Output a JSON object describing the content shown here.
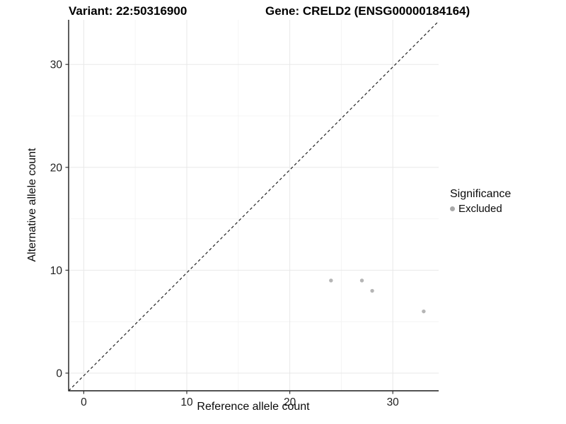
{
  "titles": {
    "variant": "Variant: 22:50316900",
    "gene": "Gene: CRELD2 (ENSG00000184164)"
  },
  "chart_data": {
    "type": "scatter",
    "xlabel": "Reference allele count",
    "ylabel": "Alternative allele count",
    "xlim": [
      -1.5,
      34.5
    ],
    "ylim": [
      -1.7,
      34.3
    ],
    "xticks": [
      0,
      10,
      20,
      30
    ],
    "yticks": [
      0,
      10,
      20,
      30
    ],
    "minor_gridlines": [
      5,
      15,
      25
    ],
    "grid": "on",
    "legend_position": "right",
    "identity_line": {
      "equation": "y = x",
      "style": "dashed",
      "color": "#222222"
    },
    "series": [
      {
        "name": "Excluded",
        "color": "#b5b5b5",
        "points": [
          {
            "x": 24,
            "y": 9
          },
          {
            "x": 27,
            "y": 9
          },
          {
            "x": 28,
            "y": 8
          },
          {
            "x": 33,
            "y": 6
          }
        ]
      }
    ],
    "legend": {
      "title": "Significance",
      "items": [
        {
          "label": "Excluded",
          "color": "#a9a9a9"
        }
      ]
    },
    "style": {
      "major_grid_color": "#e8e8e8",
      "minor_grid_color": "#f4f4f4",
      "axis_line_color": "#1a1a1a",
      "tick_color": "#333333",
      "tick_label_color": "#1f1f1f"
    }
  }
}
